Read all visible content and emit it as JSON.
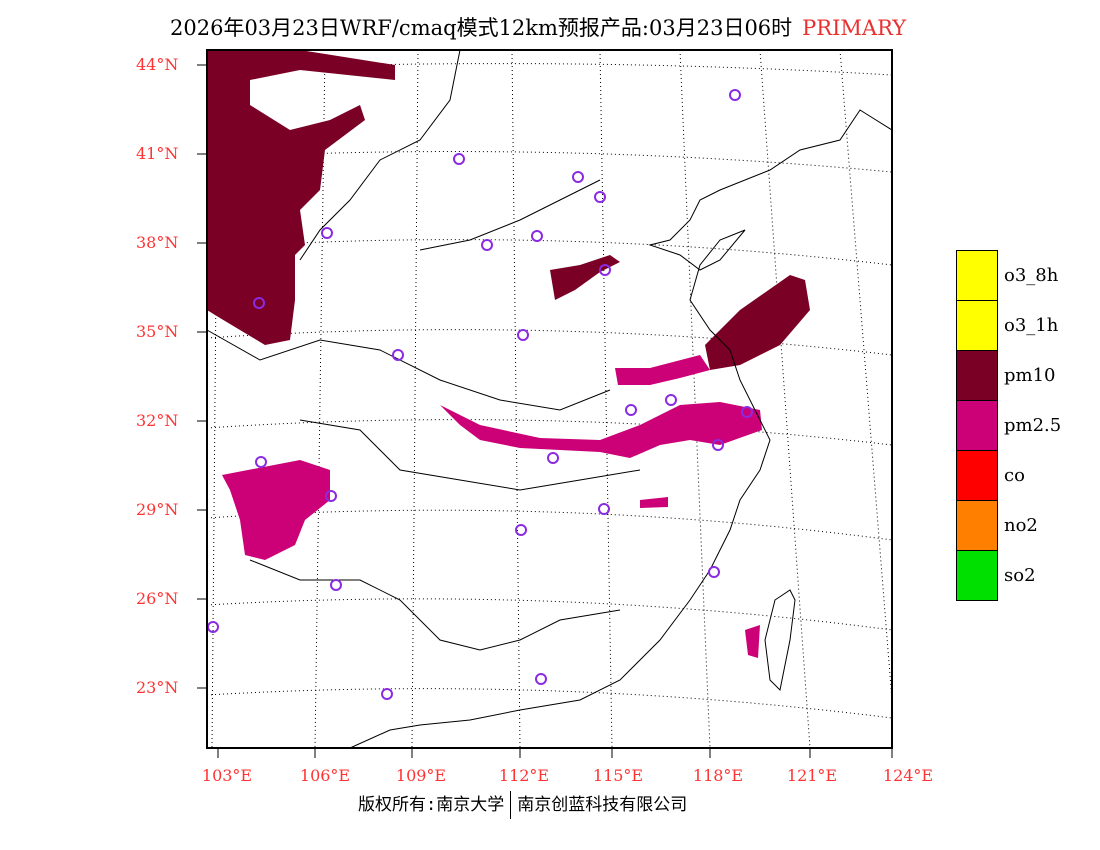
{
  "title": {
    "main": "2026年03月23日WRF/cmaq模式12km预报产品:03月23日06时",
    "tag": "PRIMARY"
  },
  "lat_labels": [
    "44°N",
    "41°N",
    "38°N",
    "35°N",
    "32°N",
    "29°N",
    "26°N",
    "23°N"
  ],
  "lon_labels": [
    "103°E",
    "106°E",
    "109°E",
    "112°E",
    "115°E",
    "118°E",
    "121°E",
    "124°E"
  ],
  "legend": [
    {
      "label": "o3_8h",
      "color": "#ffff00"
    },
    {
      "label": "o3_1h",
      "color": "#ffff00"
    },
    {
      "label": "pm10",
      "color": "#7a0026"
    },
    {
      "label": "pm2.5",
      "color": "#cc0077"
    },
    {
      "label": "co",
      "color": "#ff0000"
    },
    {
      "label": "no2",
      "color": "#ff7f00"
    },
    {
      "label": "so2",
      "color": "#00e000"
    }
  ],
  "footer": {
    "left": "版权所有:南京大学",
    "right": "南京创蓝科技有限公司"
  }
}
